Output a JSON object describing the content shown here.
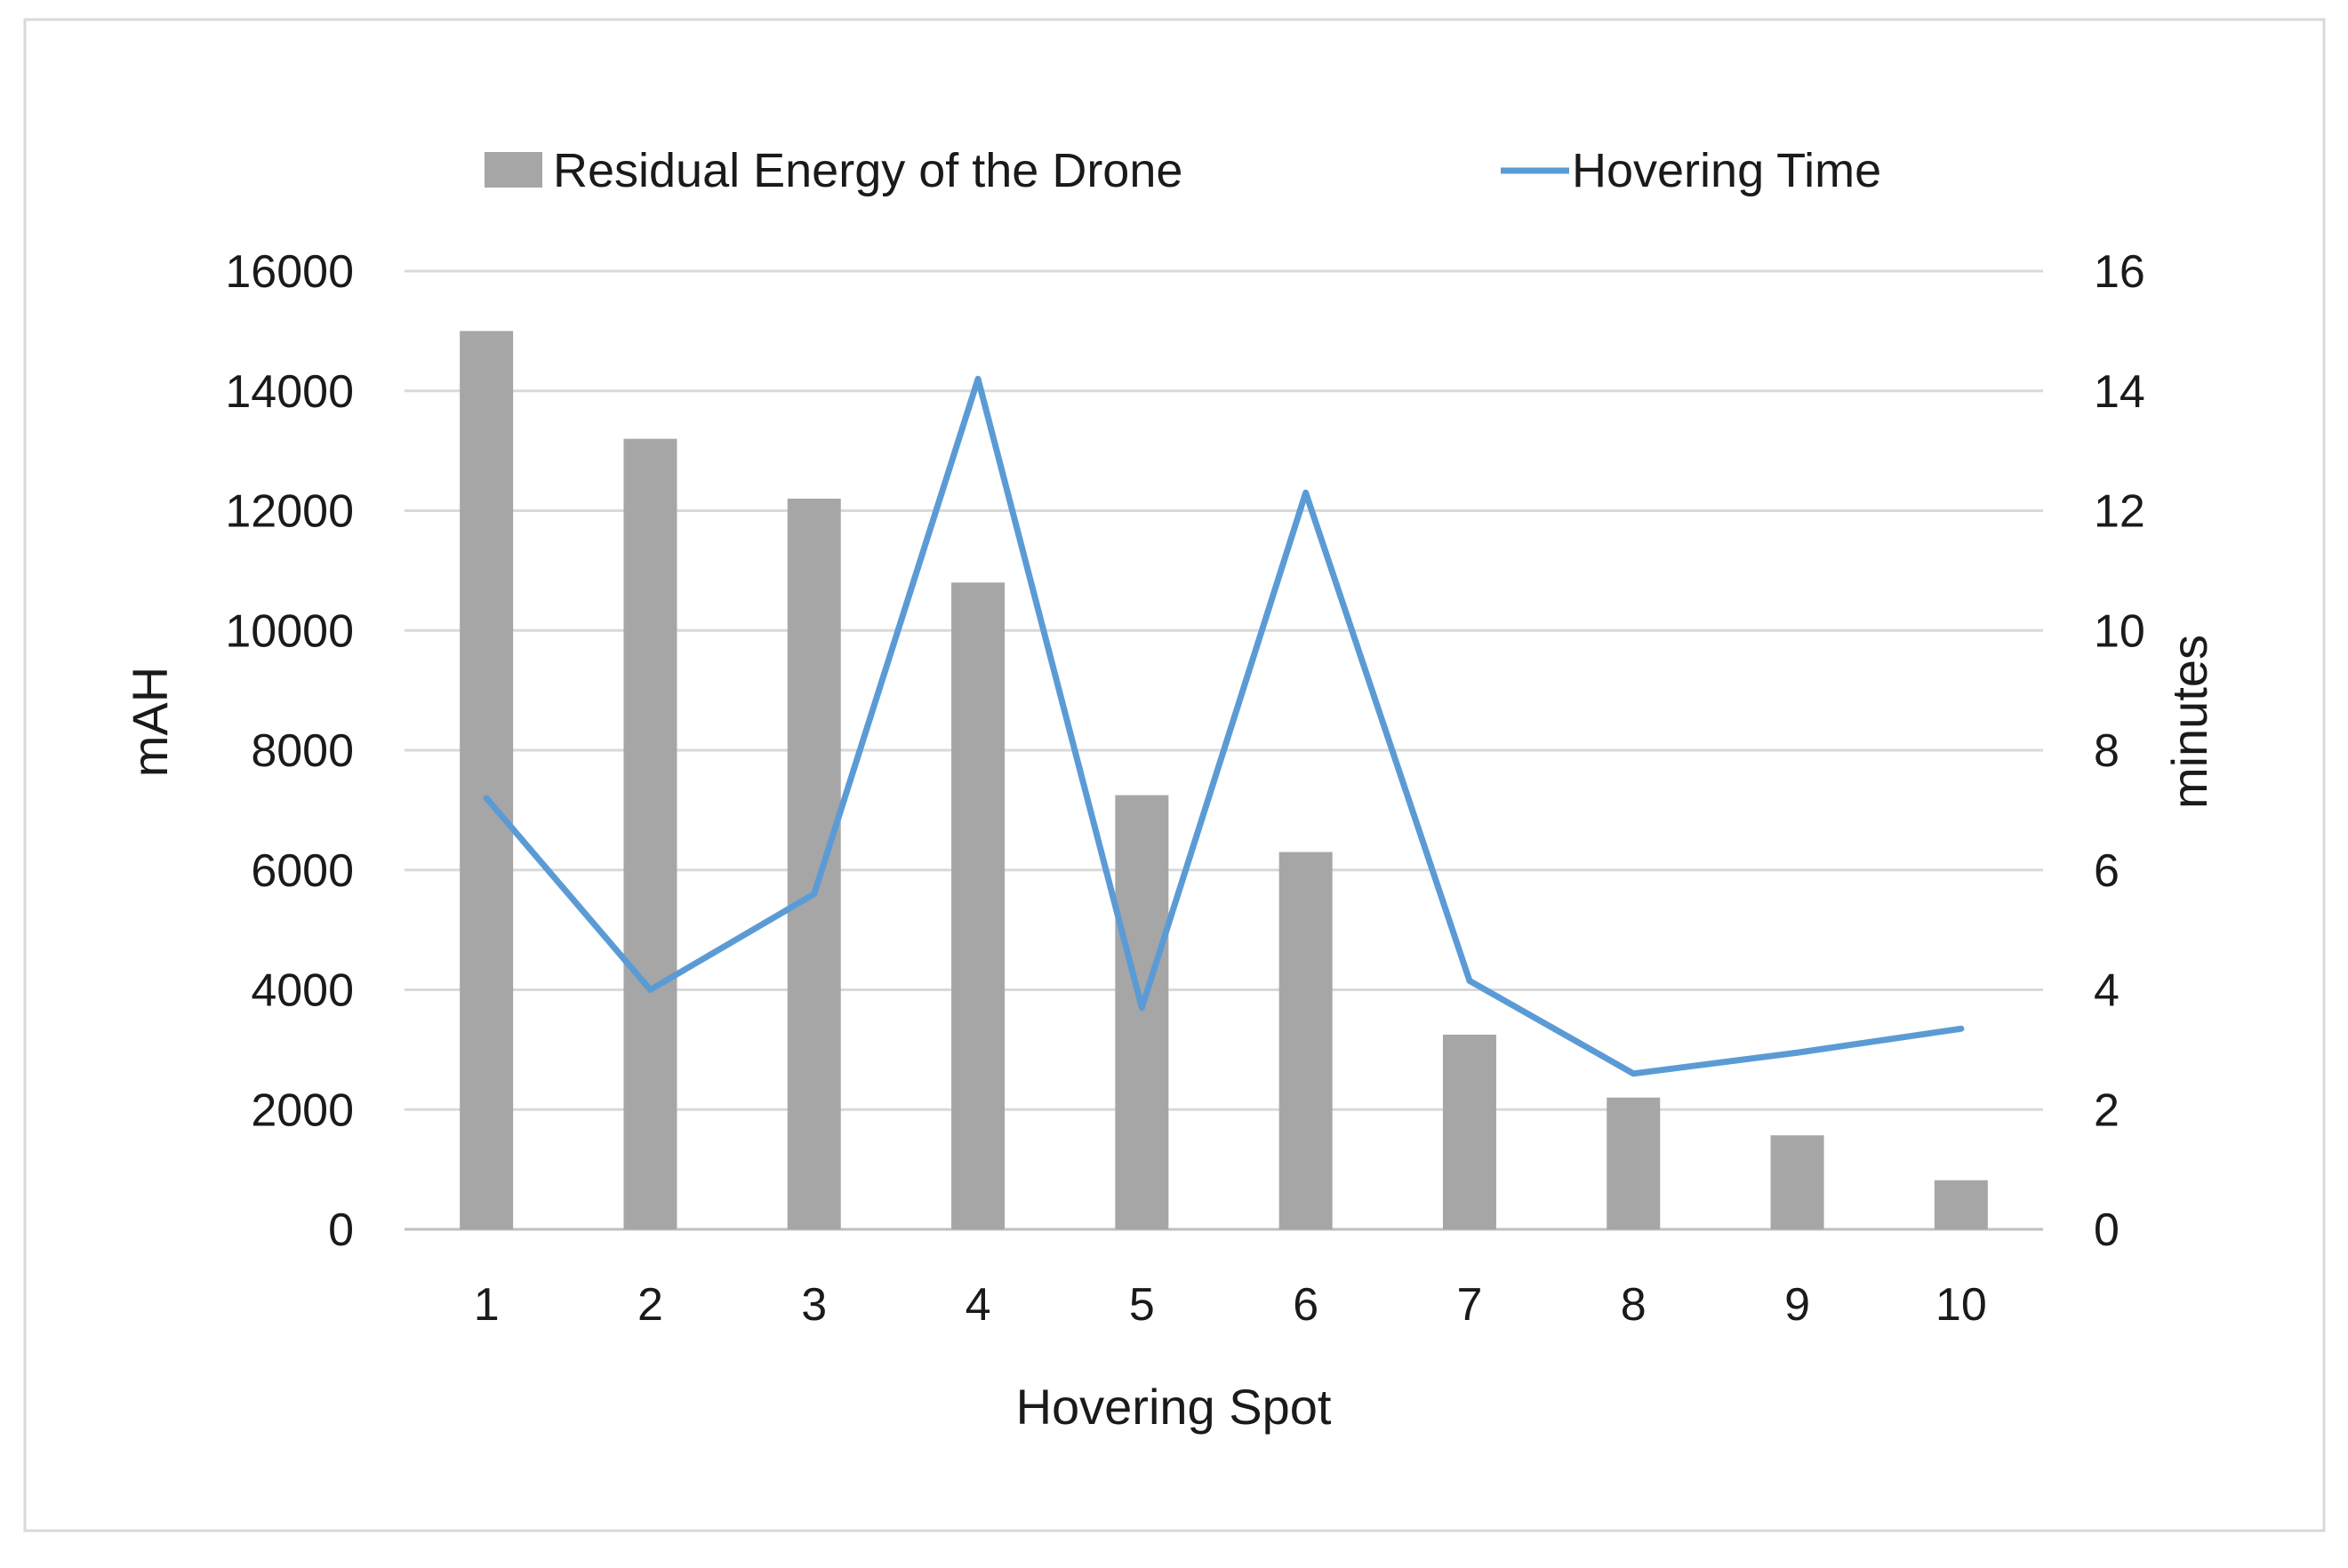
{
  "chart_data": {
    "type": "bar+line",
    "title": "",
    "xlabel": "Hovering Spot",
    "ylabel_left": "mAH",
    "ylabel_right": "minutes",
    "categories": [
      "1",
      "2",
      "3",
      "4",
      "5",
      "6",
      "7",
      "8",
      "9",
      "10"
    ],
    "ylim_left": [
      0,
      16000
    ],
    "ylim_right": [
      0,
      16
    ],
    "yticks_left": [
      "0",
      "2000",
      "4000",
      "6000",
      "8000",
      "10000",
      "12000",
      "14000",
      "16000"
    ],
    "yticks_right": [
      "0",
      "2",
      "4",
      "6",
      "8",
      "10",
      "12",
      "14",
      "16"
    ],
    "grid": true,
    "legend_position": "top",
    "series": [
      {
        "name": "Residual Energy of the Drone",
        "type": "bar",
        "axis": "left",
        "color": "#a6a6a6",
        "values": [
          15000,
          13200,
          12200,
          10800,
          7250,
          6300,
          3250,
          2200,
          1570,
          820
        ]
      },
      {
        "name": "Hovering Time",
        "type": "line",
        "axis": "right",
        "color": "#5b9bd5",
        "values": [
          7.2,
          4.0,
          5.6,
          14.2,
          3.7,
          12.3,
          4.15,
          2.6,
          2.95,
          3.35
        ]
      }
    ]
  }
}
